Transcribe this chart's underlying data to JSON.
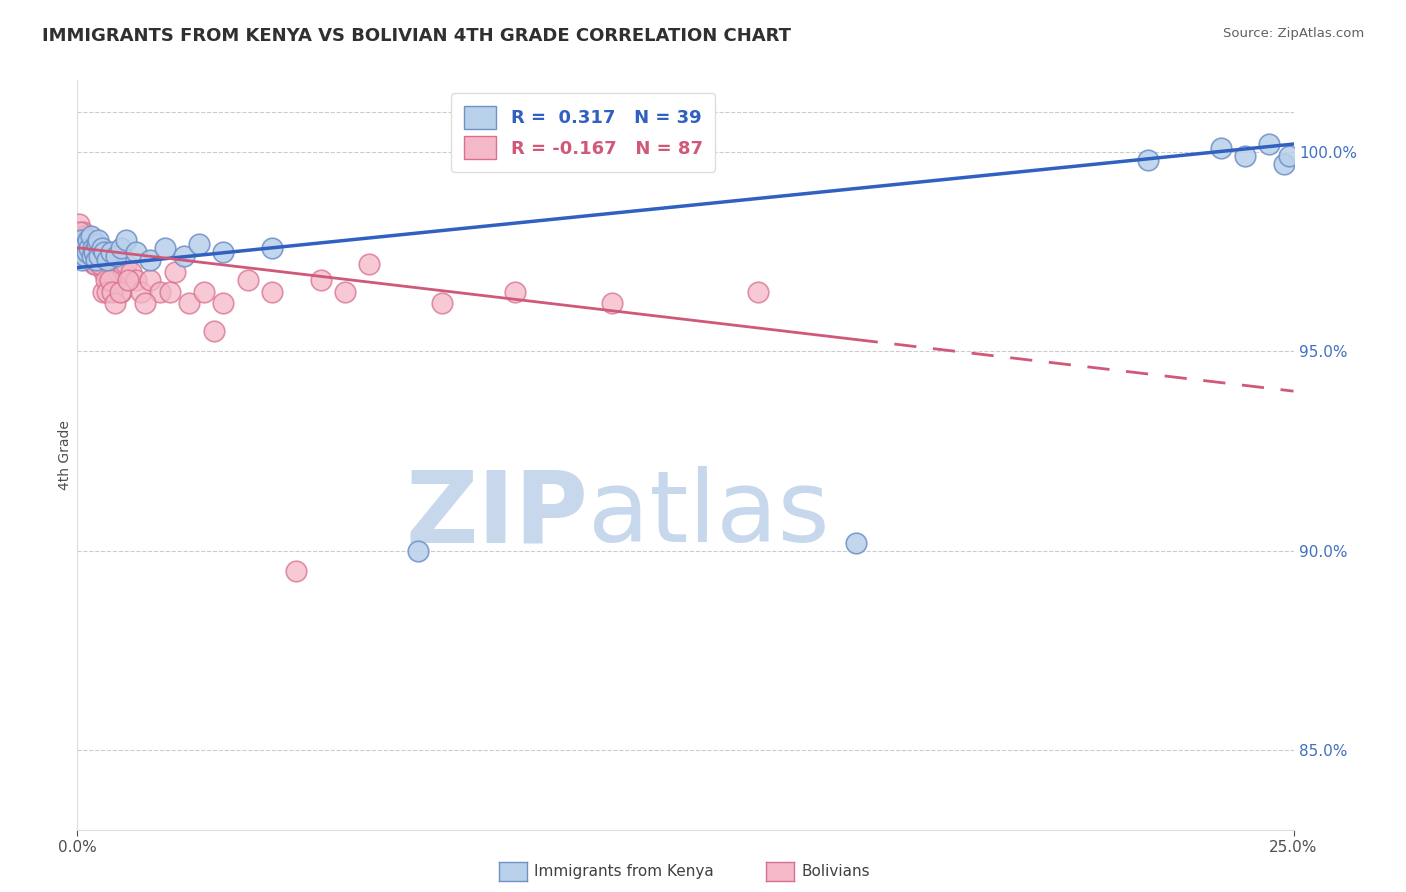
{
  "title": "IMMIGRANTS FROM KENYA VS BOLIVIAN 4TH GRADE CORRELATION CHART",
  "source_text": "Source: ZipAtlas.com",
  "ylabel_left": "4th Grade",
  "y_ticks_right": [
    85.0,
    90.0,
    95.0,
    100.0
  ],
  "y_tick_labels_right": [
    "85.0%",
    "90.0%",
    "95.0%",
    "100.0%"
  ],
  "xlim": [
    0.0,
    25.0
  ],
  "ylim": [
    83.0,
    101.8
  ],
  "legend_r1": "R =  0.317",
  "legend_n1": "N = 39",
  "legend_r2": "R = -0.167",
  "legend_n2": "N = 87",
  "legend_color1": "#b8d0ea",
  "legend_color2": "#f4b8c8",
  "marker_color1": "#b8d0ea",
  "marker_edge_color1": "#7090c8",
  "marker_color2": "#f4b8c8",
  "marker_edge_color2": "#d87090",
  "line_color1": "#3060c0",
  "line_color2": "#d05878",
  "watermark_zip": "ZIP",
  "watermark_atlas": "atlas",
  "watermark_color_zip": "#c8d8ec",
  "watermark_color_atlas": "#c8d8ec",
  "title_color": "#303030",
  "source_color": "#606060",
  "legend_label1": "Immigrants from Kenya",
  "legend_label2": "Bolivians",
  "kenya_x": [
    0.05,
    0.08,
    0.1,
    0.12,
    0.15,
    0.18,
    0.2,
    0.22,
    0.25,
    0.28,
    0.3,
    0.32,
    0.35,
    0.38,
    0.4,
    0.42,
    0.45,
    0.5,
    0.55,
    0.6,
    0.7,
    0.8,
    0.9,
    1.0,
    1.2,
    1.5,
    1.8,
    2.2,
    2.5,
    3.0,
    4.0,
    7.0,
    16.0,
    22.0,
    23.5,
    24.0,
    24.5,
    24.8,
    24.9
  ],
  "kenya_y": [
    97.5,
    97.8,
    97.3,
    97.6,
    97.4,
    97.7,
    97.5,
    97.8,
    97.6,
    97.9,
    97.4,
    97.6,
    97.5,
    97.3,
    97.7,
    97.8,
    97.4,
    97.6,
    97.5,
    97.3,
    97.5,
    97.4,
    97.6,
    97.8,
    97.5,
    97.3,
    97.6,
    97.4,
    97.7,
    97.5,
    97.6,
    90.0,
    90.2,
    99.8,
    100.1,
    99.9,
    100.2,
    99.7,
    99.9
  ],
  "bolivian_x": [
    0.03,
    0.05,
    0.07,
    0.08,
    0.1,
    0.11,
    0.12,
    0.13,
    0.14,
    0.15,
    0.16,
    0.17,
    0.18,
    0.19,
    0.2,
    0.21,
    0.22,
    0.23,
    0.25,
    0.27,
    0.28,
    0.3,
    0.32,
    0.35,
    0.37,
    0.38,
    0.4,
    0.42,
    0.44,
    0.45,
    0.47,
    0.5,
    0.55,
    0.6,
    0.65,
    0.7,
    0.75,
    0.8,
    0.85,
    0.9,
    0.95,
    1.0,
    1.1,
    1.2,
    1.3,
    1.5,
    1.7,
    2.0,
    2.3,
    2.6,
    3.0,
    3.5,
    4.0,
    5.0,
    5.5,
    6.0,
    7.5,
    9.0,
    11.0,
    14.0,
    0.06,
    0.09,
    0.13,
    0.16,
    0.24,
    0.26,
    0.29,
    0.31,
    0.33,
    0.36,
    0.39,
    0.41,
    0.43,
    0.46,
    0.48,
    0.52,
    0.58,
    0.62,
    0.67,
    0.72,
    0.78,
    0.88,
    1.05,
    1.4,
    1.9,
    2.8,
    4.5
  ],
  "bolivian_y": [
    98.2,
    97.8,
    97.5,
    97.9,
    97.6,
    98.0,
    97.7,
    97.4,
    97.8,
    97.5,
    97.9,
    97.6,
    97.8,
    97.4,
    97.6,
    97.8,
    97.5,
    97.7,
    97.5,
    97.6,
    97.4,
    97.3,
    97.5,
    97.2,
    97.4,
    97.6,
    97.3,
    97.5,
    97.2,
    97.4,
    97.3,
    97.2,
    97.0,
    97.1,
    96.8,
    97.0,
    97.2,
    96.8,
    97.0,
    96.5,
    97.0,
    97.2,
    97.0,
    96.8,
    96.5,
    96.8,
    96.5,
    97.0,
    96.2,
    96.5,
    96.2,
    96.8,
    96.5,
    96.8,
    96.5,
    97.2,
    96.2,
    96.5,
    96.2,
    96.5,
    98.0,
    97.6,
    97.4,
    97.8,
    97.3,
    97.5,
    97.3,
    97.6,
    97.4,
    97.2,
    97.5,
    97.3,
    97.4,
    97.2,
    97.5,
    96.5,
    96.8,
    96.5,
    96.8,
    96.5,
    96.2,
    96.5,
    96.8,
    96.2,
    96.5,
    95.5,
    89.5
  ],
  "line1_x0": 0.0,
  "line1_y0": 97.1,
  "line1_x1": 25.0,
  "line1_y1": 100.2,
  "line2_x0": 0.0,
  "line2_y0": 97.6,
  "line2_x1": 25.0,
  "line2_y1": 94.0,
  "line2_solid_end_x": 16.0
}
